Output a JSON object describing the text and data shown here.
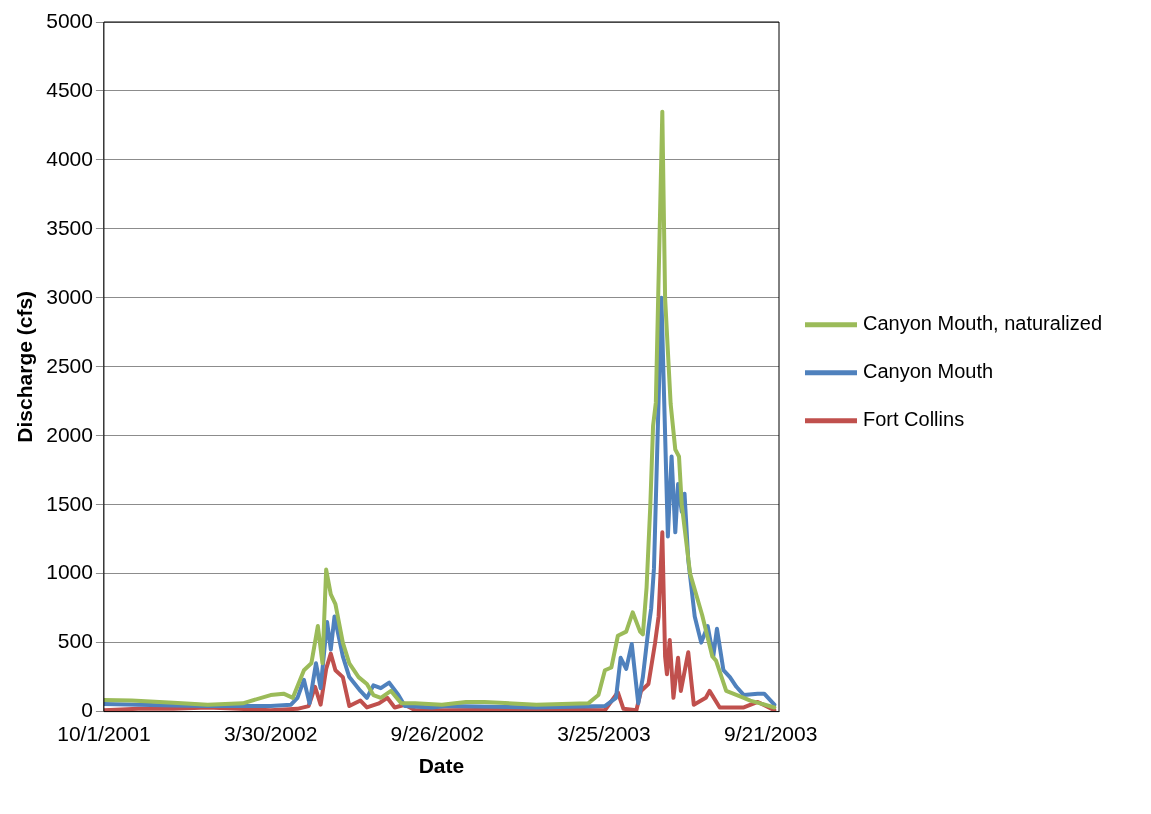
{
  "chart_data": {
    "type": "line",
    "xlabel": "Date",
    "ylabel": "Discharge (cfs)",
    "xlim": [
      "2001-10-01",
      "2003-09-30"
    ],
    "xticks": [
      {
        "value": "2001-10-01",
        "label": "10/1/2001"
      },
      {
        "value": "2002-03-30",
        "label": "3/30/2002"
      },
      {
        "value": "2002-09-26",
        "label": "9/26/2002"
      },
      {
        "value": "2003-03-25",
        "label": "3/25/2003"
      },
      {
        "value": "2003-09-21",
        "label": "9/21/2003"
      }
    ],
    "ylim": [
      0,
      5000
    ],
    "yticks": [
      0,
      500,
      1000,
      1500,
      2000,
      2500,
      3000,
      3500,
      4000,
      4500,
      5000
    ],
    "grid": "y",
    "legend": "right",
    "marker": "none",
    "line_style": "solid",
    "series": [
      {
        "name": "Canyon Mouth, naturalized",
        "color": "#9bbb59",
        "x": [
          "2001-10-01",
          "2001-10-31",
          "2001-12-15",
          "2002-01-21",
          "2002-02-28",
          "2002-03-30",
          "2002-04-13",
          "2002-04-23",
          "2002-05-05",
          "2002-05-13",
          "2002-05-20",
          "2002-05-25",
          "2002-05-29",
          "2002-06-03",
          "2002-06-08",
          "2002-06-16",
          "2002-06-23",
          "2002-07-03",
          "2002-07-12",
          "2002-07-19",
          "2002-07-27",
          "2002-08-07",
          "2002-08-18",
          "2002-09-02",
          "2002-10-01",
          "2002-10-27",
          "2002-11-16",
          "2003-01-11",
          "2003-03-08",
          "2003-03-19",
          "2003-03-26",
          "2003-04-02",
          "2003-04-09",
          "2003-04-18",
          "2003-04-25",
          "2003-05-03",
          "2003-05-06",
          "2003-05-10",
          "2003-05-14",
          "2003-05-17",
          "2003-05-20",
          "2003-05-27",
          "2003-05-30",
          "2003-06-05",
          "2003-06-10",
          "2003-06-14",
          "2003-06-17",
          "2003-06-26",
          "2003-07-09",
          "2003-07-20",
          "2003-07-24",
          "2003-08-04",
          "2003-08-23",
          "2003-08-30",
          "2003-09-25"
        ],
        "values": [
          85,
          80,
          65,
          50,
          60,
          120,
          130,
          100,
          300,
          350,
          620,
          350,
          1030,
          850,
          780,
          500,
          350,
          250,
          200,
          120,
          100,
          150,
          60,
          60,
          50,
          70,
          70,
          50,
          60,
          120,
          300,
          320,
          550,
          580,
          720,
          580,
          560,
          900,
          1490,
          2070,
          2240,
          4350,
          3000,
          2230,
          1900,
          1850,
          1500,
          1000,
          700,
          400,
          370,
          150,
          100,
          80,
          30
        ]
      },
      {
        "name": "Canyon Mouth",
        "color": "#4f81bd",
        "x": [
          "2001-10-01",
          "2001-12-15",
          "2002-01-21",
          "2002-03-30",
          "2002-04-21",
          "2002-04-28",
          "2002-05-05",
          "2002-05-11",
          "2002-05-18",
          "2002-05-23",
          "2002-05-30",
          "2002-06-03",
          "2002-06-07",
          "2002-06-16",
          "2002-06-23",
          "2002-07-05",
          "2002-07-12",
          "2002-07-19",
          "2002-07-27",
          "2002-08-05",
          "2002-08-15",
          "2002-08-22",
          "2002-09-20",
          "2002-10-06",
          "2003-01-11",
          "2003-03-26",
          "2003-04-07",
          "2003-04-12",
          "2003-04-18",
          "2003-04-24",
          "2003-05-01",
          "2003-05-06",
          "2003-05-12",
          "2003-05-15",
          "2003-05-18",
          "2003-05-26",
          "2003-06-02",
          "2003-06-06",
          "2003-06-10",
          "2003-06-13",
          "2003-06-17",
          "2003-06-20",
          "2003-06-24",
          "2003-07-01",
          "2003-07-08",
          "2003-07-15",
          "2003-07-21",
          "2003-07-25",
          "2003-08-01",
          "2003-08-08",
          "2003-08-15",
          "2003-08-23",
          "2003-09-07",
          "2003-09-14",
          "2003-09-25"
        ],
        "values": [
          55,
          45,
          40,
          40,
          50,
          100,
          230,
          60,
          350,
          170,
          650,
          450,
          690,
          400,
          250,
          150,
          100,
          190,
          170,
          210,
          120,
          40,
          30,
          40,
          30,
          40,
          100,
          390,
          310,
          490,
          60,
          250,
          600,
          750,
          1040,
          3000,
          1270,
          1850,
          1300,
          1650,
          1450,
          1580,
          1100,
          690,
          500,
          620,
          400,
          600,
          300,
          250,
          180,
          120,
          130,
          130,
          50
        ]
      },
      {
        "name": "Fort Collins",
        "color": "#c0504d",
        "x": [
          "2001-10-01",
          "2001-11-07",
          "2001-12-15",
          "2002-01-21",
          "2002-03-30",
          "2002-04-28",
          "2002-05-10",
          "2002-05-17",
          "2002-05-23",
          "2002-05-29",
          "2002-06-03",
          "2002-06-08",
          "2002-06-16",
          "2002-06-23",
          "2002-07-05",
          "2002-07-12",
          "2002-07-25",
          "2002-08-03",
          "2002-08-11",
          "2002-08-22",
          "2002-09-02",
          "2002-10-06",
          "2003-01-11",
          "2003-03-26",
          "2003-04-09",
          "2003-04-15",
          "2003-04-29",
          "2003-05-04",
          "2003-05-12",
          "2003-05-19",
          "2003-05-23",
          "2003-05-27",
          "2003-05-30",
          "2003-06-01",
          "2003-06-04",
          "2003-06-08",
          "2003-06-13",
          "2003-06-16",
          "2003-06-24",
          "2003-06-30",
          "2003-07-13",
          "2003-07-17",
          "2003-07-28",
          "2003-08-23",
          "2003-09-07",
          "2003-09-25"
        ],
        "values": [
          10,
          20,
          20,
          30,
          10,
          20,
          40,
          180,
          50,
          310,
          420,
          300,
          250,
          40,
          80,
          30,
          60,
          100,
          30,
          50,
          10,
          10,
          15,
          10,
          140,
          20,
          10,
          150,
          200,
          490,
          690,
          1300,
          400,
          270,
          520,
          100,
          390,
          150,
          430,
          50,
          100,
          150,
          30,
          30,
          70,
          10
        ]
      }
    ]
  }
}
